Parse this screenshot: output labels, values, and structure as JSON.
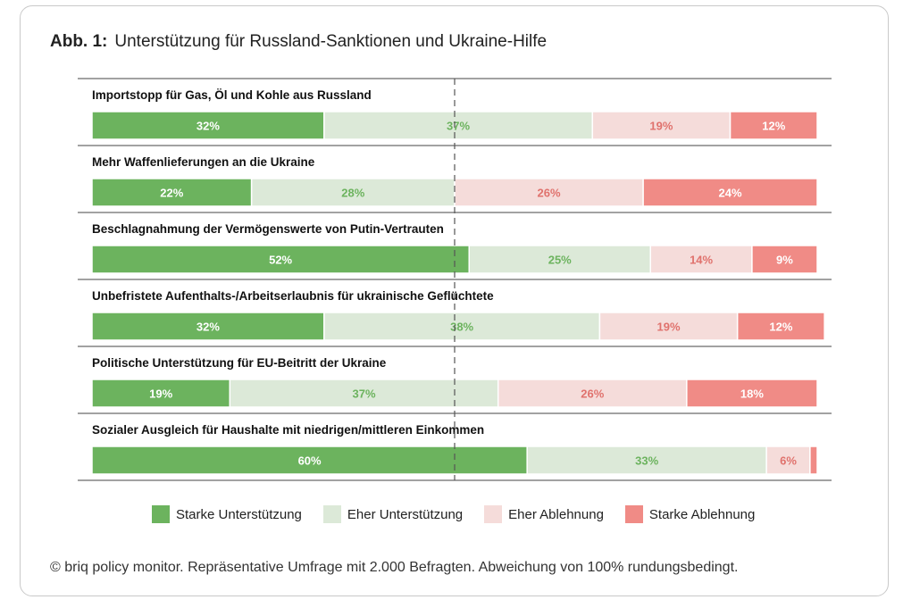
{
  "figure": {
    "label": "Abb. 1:",
    "title": "Unterstützung für Russland-Sanktionen und Ukraine-Hilfe",
    "footnote": "© briq policy monitor. Repräsentative Umfrage mit 2.000 Befragten. Abweichung von 100% rundungsbedingt."
  },
  "colors": {
    "strong_support": "#6cb35e",
    "rather_support": "#dce9d8",
    "rather_reject": "#f5dcda",
    "strong_reject": "#f08b86",
    "label_dark_bg": "#ffffff",
    "label_green_light": "#6cb35e",
    "label_red_light": "#e0726d"
  },
  "legend": [
    {
      "name": "Starke Unterstützung",
      "color": "#6cb35e"
    },
    {
      "name": "Eher Unterstützung",
      "color": "#dce9d8"
    },
    {
      "name": "Eher Ablehnung",
      "color": "#f5dcda"
    },
    {
      "name": "Starke Ablehnung",
      "color": "#f08b86"
    }
  ],
  "chart_data": {
    "type": "bar",
    "orientation": "horizontal",
    "stacked": "100%",
    "title": "Unterstützung für Russland-Sanktionen und Ukraine-Hilfe",
    "categories": [
      "Importstopp für Gas, Öl und Kohle aus Russland",
      "Mehr Waffenlieferungen an die Ukraine",
      "Beschlagnahmung der Vermögenswerte von Putin-Vertrauten",
      "Unbefristete Aufenthalts-/Arbeitserlaubnis für ukrainische Geflüchtete",
      "Politische Unterstützung für EU-Beitritt der Ukraine",
      "Sozialer Ausgleich für Haushalte mit niedrigen/mittleren Einkommen"
    ],
    "series": [
      {
        "name": "Starke Unterstützung",
        "values": [
          32,
          22,
          52,
          32,
          19,
          60
        ]
      },
      {
        "name": "Eher Unterstützung",
        "values": [
          37,
          28,
          25,
          38,
          37,
          33
        ]
      },
      {
        "name": "Eher Ablehnung",
        "values": [
          19,
          26,
          14,
          19,
          26,
          6
        ]
      },
      {
        "name": "Starke Ablehnung",
        "values": [
          12,
          24,
          9,
          12,
          18,
          1
        ]
      }
    ],
    "labels": [
      [
        "32%",
        "37%",
        "19%",
        "12%"
      ],
      [
        "22%",
        "28%",
        "26%",
        "24%"
      ],
      [
        "52%",
        "25%",
        "14%",
        "9%"
      ],
      [
        "32%",
        "38%",
        "19%",
        "12%"
      ],
      [
        "19%",
        "37%",
        "26%",
        "18%"
      ],
      [
        "60%",
        "33%",
        "6%",
        ""
      ]
    ],
    "reference_line": 50,
    "xlim": [
      0,
      100
    ]
  }
}
